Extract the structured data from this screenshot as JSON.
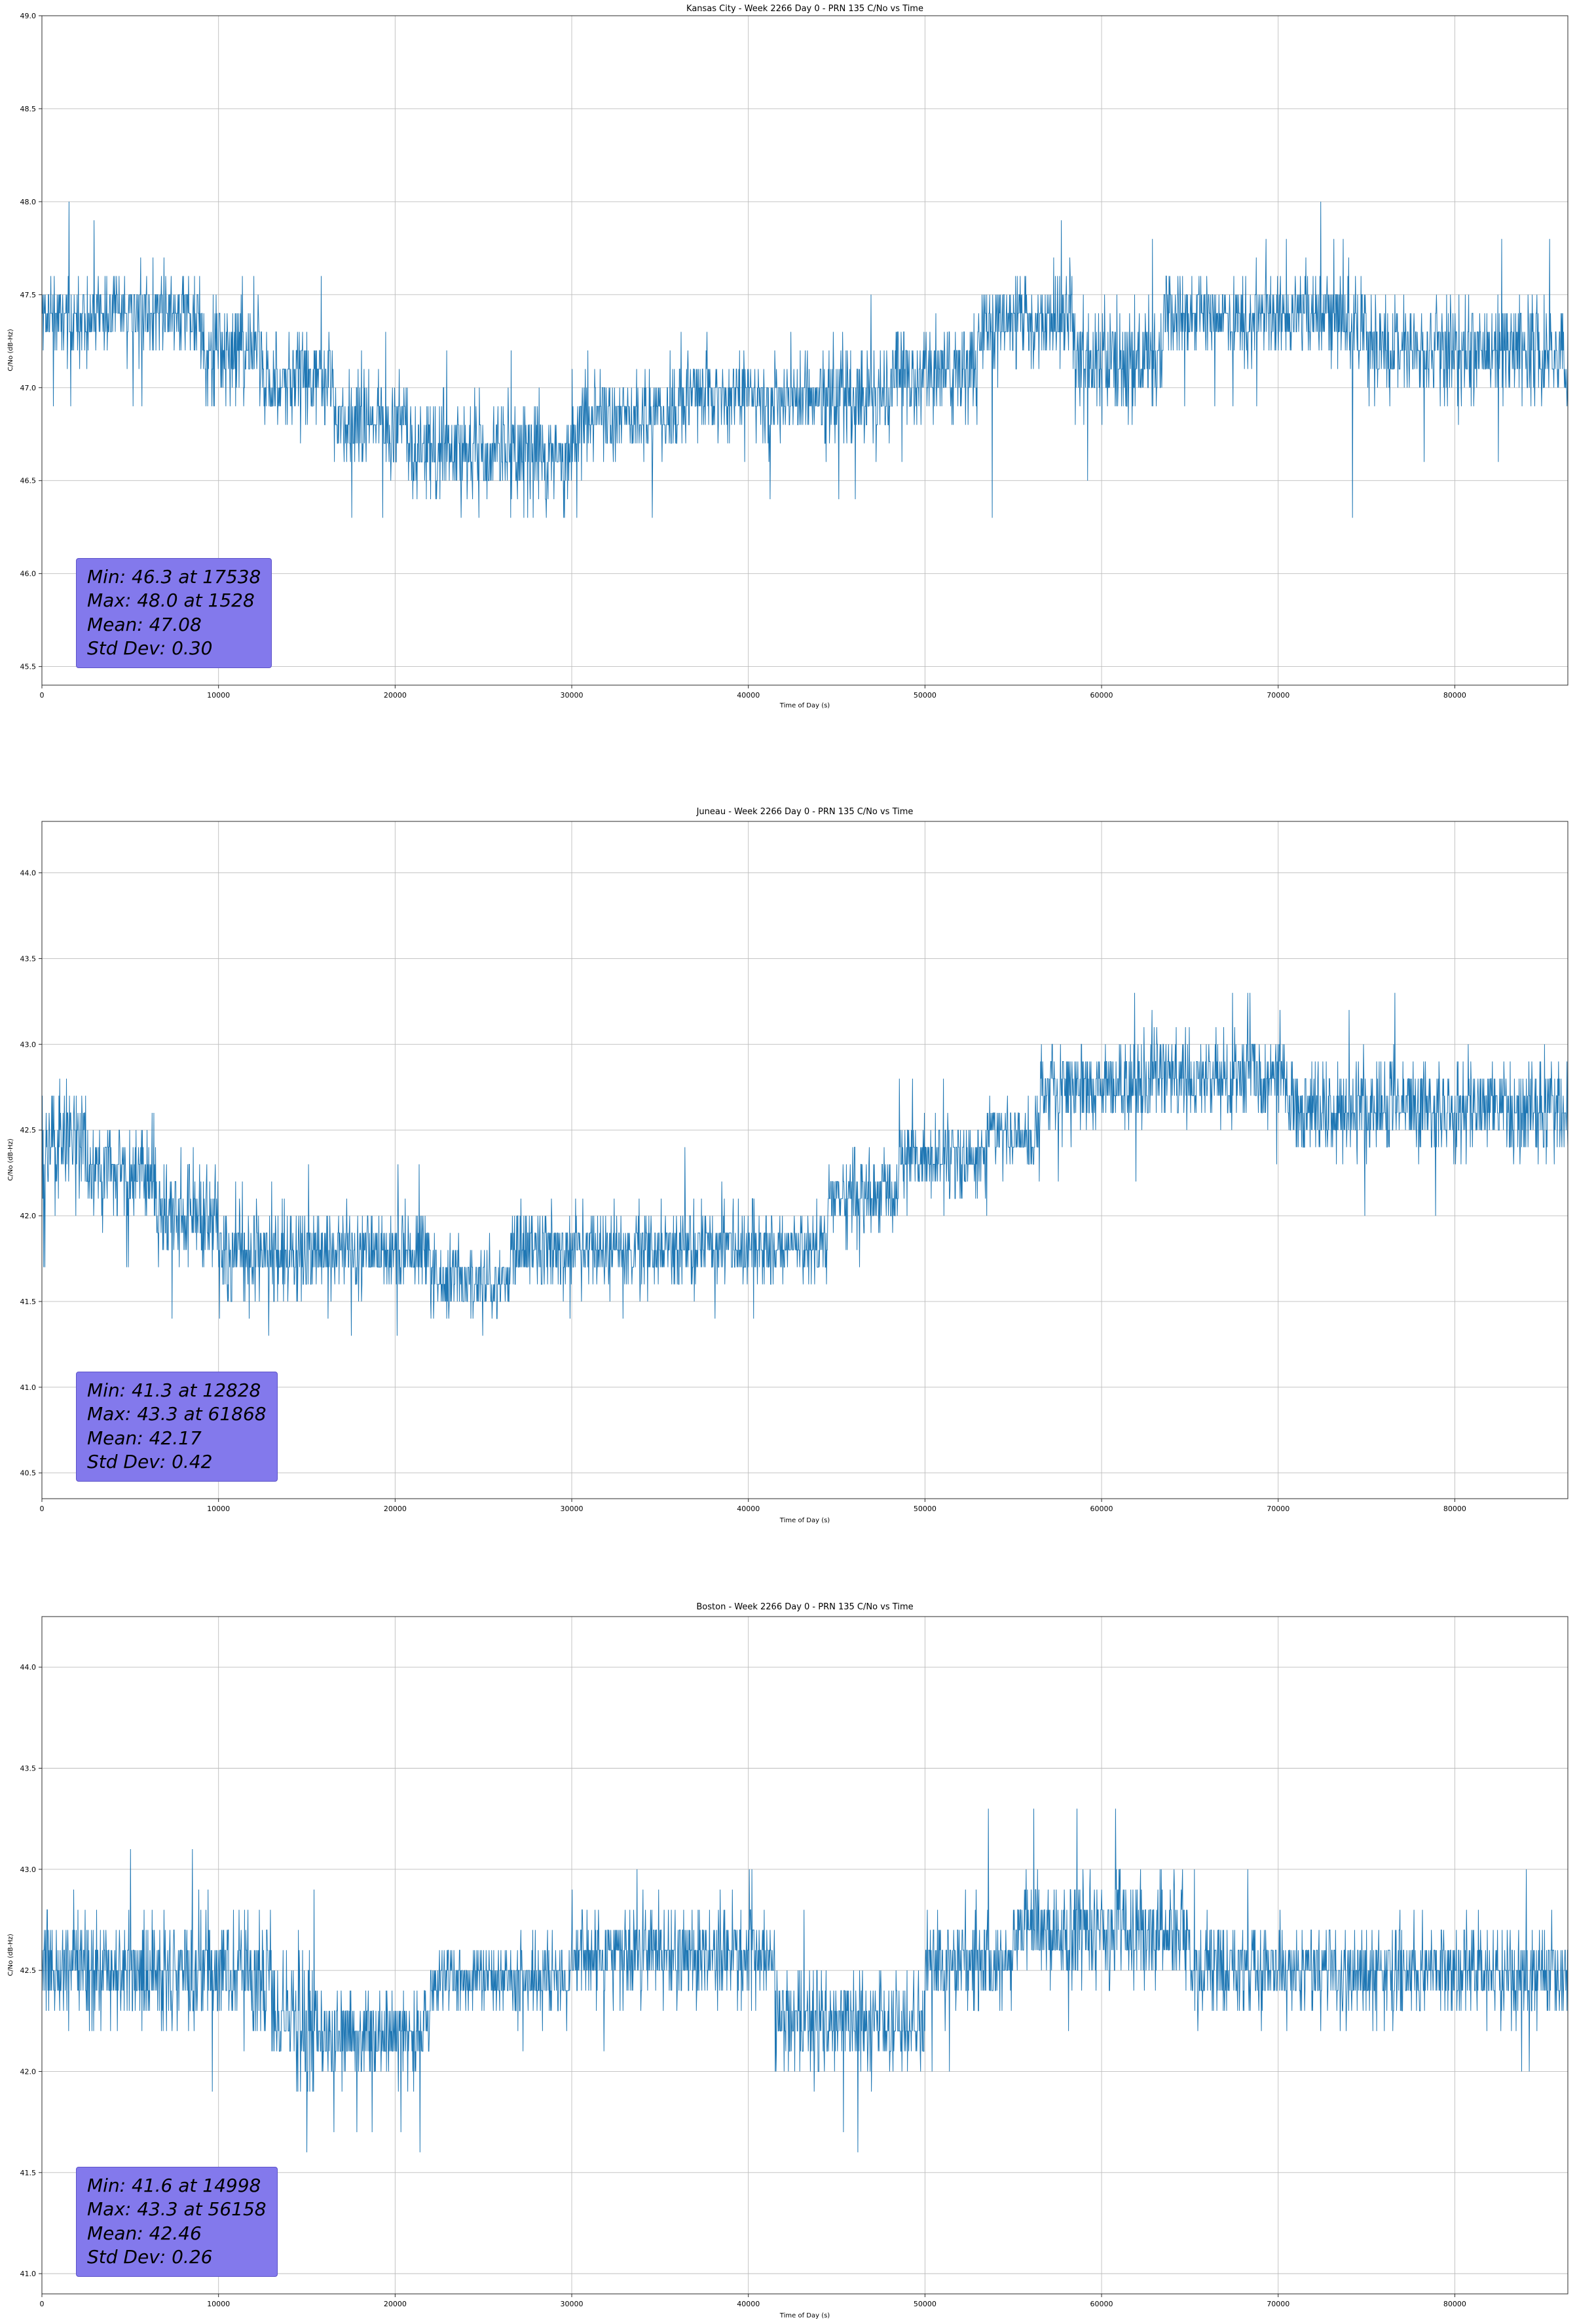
{
  "chart_data": [
    {
      "type": "line",
      "title": "Kansas City - Week 2266 Day 0 - PRN 135 C/No vs Time",
      "xlabel": "Time of Day (s)",
      "ylabel": "C/No (dB-Hz)",
      "xlim": [
        0,
        86400
      ],
      "ylim": [
        45.4,
        49.0
      ],
      "xticks": [
        0,
        10000,
        20000,
        30000,
        40000,
        50000,
        60000,
        70000,
        80000
      ],
      "yticks": [
        45.5,
        46.0,
        46.5,
        47.0,
        47.5,
        48.0,
        48.5,
        49.0
      ],
      "grid": true,
      "line_color": "#1f77b4",
      "annotation_bg": "#8379ec",
      "stats": {
        "min": 46.3,
        "min_time": 17538,
        "max": 48.0,
        "max_time": 1528,
        "mean": 47.08,
        "std": 0.3
      },
      "stats_lines": [
        "Min: 46.3 at 17538",
        "Max: 48.0 at 1528",
        "Mean: 47.08",
        "Std Dev: 0.30"
      ],
      "sample_interval_s": 24,
      "quantization_db": 0.1,
      "seed": 11,
      "band_segments": [
        [
          0,
          9000,
          47.4,
          0.25
        ],
        [
          9000,
          12500,
          47.2,
          0.35
        ],
        [
          12500,
          16500,
          47.05,
          0.3
        ],
        [
          16500,
          21000,
          46.8,
          0.3
        ],
        [
          21000,
          30000,
          46.65,
          0.32
        ],
        [
          30000,
          36000,
          46.85,
          0.3
        ],
        [
          36000,
          48000,
          46.95,
          0.3
        ],
        [
          48000,
          53000,
          47.1,
          0.3
        ],
        [
          53000,
          58500,
          47.35,
          0.28
        ],
        [
          58500,
          63500,
          47.15,
          0.35
        ],
        [
          63500,
          75000,
          47.38,
          0.25
        ],
        [
          75000,
          86400,
          47.2,
          0.32
        ]
      ],
      "outliers": [
        [
          1528,
          48.0
        ],
        [
          17538,
          46.3
        ],
        [
          53800,
          46.3
        ],
        [
          72400,
          48.0
        ],
        [
          74200,
          46.3
        ]
      ]
    },
    {
      "type": "line",
      "title": "Juneau - Week 2266 Day 0 - PRN 135 C/No vs Time",
      "xlabel": "Time of Day (s)",
      "ylabel": "C/No (dB-Hz)",
      "xlim": [
        0,
        86400
      ],
      "ylim": [
        40.35,
        44.3
      ],
      "xticks": [
        0,
        10000,
        20000,
        30000,
        40000,
        50000,
        60000,
        70000,
        80000
      ],
      "yticks": [
        40.5,
        41.0,
        41.5,
        42.0,
        42.5,
        43.0,
        43.5,
        44.0
      ],
      "grid": true,
      "line_color": "#1f77b4",
      "annotation_bg": "#8379ec",
      "stats": {
        "min": 41.3,
        "min_time": 12828,
        "max": 43.3,
        "max_time": 61868,
        "mean": 42.17,
        "std": 0.42
      },
      "stats_lines": [
        "Min: 41.3 at 12828",
        "Max: 43.3 at 61868",
        "Mean: 42.17",
        "Std Dev: 0.42"
      ],
      "sample_interval_s": 24,
      "quantization_db": 0.1,
      "seed": 22,
      "band_segments": [
        [
          0,
          2500,
          42.45,
          0.4
        ],
        [
          2500,
          6500,
          42.25,
          0.3
        ],
        [
          6500,
          10000,
          42.0,
          0.32
        ],
        [
          10000,
          15000,
          41.78,
          0.38
        ],
        [
          15000,
          22000,
          41.8,
          0.26
        ],
        [
          22000,
          26500,
          41.62,
          0.28
        ],
        [
          26500,
          44500,
          41.82,
          0.26
        ],
        [
          44500,
          48500,
          42.1,
          0.26
        ],
        [
          48500,
          53500,
          42.32,
          0.26
        ],
        [
          53500,
          56500,
          42.48,
          0.22
        ],
        [
          56500,
          62500,
          42.75,
          0.3
        ],
        [
          62500,
          70500,
          42.82,
          0.3
        ],
        [
          70500,
          86400,
          42.62,
          0.32
        ]
      ],
      "outliers": [
        [
          12828,
          41.3
        ],
        [
          61868,
          43.3
        ],
        [
          68400,
          43.3
        ],
        [
          76600,
          43.3
        ],
        [
          36400,
          42.4
        ]
      ]
    },
    {
      "type": "line",
      "title": "Boston - Week 2266 Day 0 - PRN 135 C/No vs Time",
      "xlabel": "Time of Day (s)",
      "ylabel": "C/No (dB-Hz)",
      "xlim": [
        0,
        86400
      ],
      "ylim": [
        40.9,
        44.25
      ],
      "xticks": [
        0,
        10000,
        20000,
        30000,
        40000,
        50000,
        60000,
        70000,
        80000
      ],
      "yticks": [
        41.0,
        41.5,
        42.0,
        42.5,
        43.0,
        43.5,
        44.0
      ],
      "grid": true,
      "line_color": "#1f77b4",
      "annotation_bg": "#8379ec",
      "stats": {
        "min": 41.6,
        "min_time": 14998,
        "max": 43.3,
        "max_time": 56158,
        "mean": 42.46,
        "std": 0.26
      },
      "stats_lines": [
        "Min: 41.6 at 14998",
        "Max: 43.3 at 56158",
        "Mean: 42.46",
        "Std Dev: 0.26"
      ],
      "sample_interval_s": 24,
      "quantization_db": 0.1,
      "seed": 33,
      "band_segments": [
        [
          0,
          13000,
          42.5,
          0.32
        ],
        [
          13000,
          15500,
          42.25,
          0.38
        ],
        [
          15500,
          22000,
          42.18,
          0.25
        ],
        [
          22000,
          30000,
          42.45,
          0.22
        ],
        [
          30000,
          41500,
          42.58,
          0.26
        ],
        [
          41500,
          50000,
          42.25,
          0.3
        ],
        [
          50000,
          55000,
          42.55,
          0.3
        ],
        [
          55000,
          65000,
          42.7,
          0.3
        ],
        [
          65000,
          86400,
          42.5,
          0.26
        ]
      ],
      "outliers": [
        [
          14998,
          41.6
        ],
        [
          56158,
          43.3
        ],
        [
          53600,
          43.3
        ],
        [
          58600,
          43.3
        ],
        [
          60800,
          43.3
        ],
        [
          46200,
          41.6
        ],
        [
          21400,
          41.6
        ]
      ]
    }
  ]
}
